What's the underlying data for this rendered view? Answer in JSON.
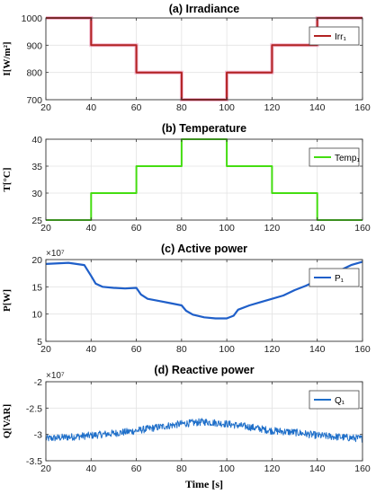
{
  "chart_data": [
    {
      "type": "line",
      "title": "(a) Irradiance",
      "ylabel": "I[W/m²]",
      "xlim": [
        20,
        160
      ],
      "ylim": [
        700,
        1000
      ],
      "xticks": [
        20,
        40,
        60,
        80,
        100,
        120,
        140,
        160
      ],
      "yticks": [
        700,
        800,
        900,
        1000
      ],
      "grid": true,
      "legend_position": "top-right",
      "series": [
        {
          "name": "Irr₁",
          "color": "#b22222",
          "step": true,
          "x": [
            20,
            40,
            40,
            60,
            60,
            80,
            80,
            100,
            100,
            120,
            120,
            140,
            140,
            160
          ],
          "y": [
            1000,
            1000,
            900,
            900,
            800,
            800,
            700,
            700,
            800,
            800,
            900,
            900,
            1000,
            1000
          ]
        }
      ]
    },
    {
      "type": "line",
      "title": "(b) Temperature",
      "ylabel": "T[°C]",
      "xlim": [
        20,
        160
      ],
      "ylim": [
        25,
        40
      ],
      "xticks": [
        20,
        40,
        60,
        80,
        100,
        120,
        140,
        160
      ],
      "yticks": [
        25,
        30,
        35,
        40
      ],
      "grid": true,
      "legend_position": "top-right",
      "series": [
        {
          "name": "Temp₁",
          "color": "#44dd11",
          "step": true,
          "x": [
            20,
            40,
            40,
            60,
            60,
            80,
            80,
            100,
            100,
            120,
            120,
            140,
            140,
            160
          ],
          "y": [
            25,
            25,
            30,
            30,
            35,
            35,
            40,
            40,
            35,
            35,
            30,
            30,
            25,
            25
          ]
        }
      ]
    },
    {
      "type": "line",
      "title": "(c)  Active power",
      "ylabel": "P[W]",
      "y_exponent_label": "×10⁷",
      "xlim": [
        20,
        160
      ],
      "ylim": [
        5,
        20
      ],
      "xticks": [
        20,
        40,
        60,
        80,
        100,
        120,
        140,
        160
      ],
      "yticks": [
        5,
        10,
        15,
        20
      ],
      "grid": true,
      "legend_position": "top-right",
      "series": [
        {
          "name": "P₁",
          "color": "#1f5fc9",
          "x": [
            20,
            30,
            37,
            40,
            42,
            45,
            50,
            55,
            60,
            62,
            65,
            70,
            75,
            80,
            82,
            85,
            90,
            95,
            100,
            103,
            105,
            110,
            115,
            120,
            125,
            130,
            135,
            140,
            145,
            150,
            155,
            160
          ],
          "y": [
            19.2,
            19.4,
            19.0,
            17.0,
            15.6,
            15.0,
            14.8,
            14.7,
            14.8,
            13.6,
            12.8,
            12.4,
            12.0,
            11.6,
            10.6,
            9.9,
            9.4,
            9.2,
            9.2,
            9.7,
            10.8,
            11.6,
            12.2,
            12.8,
            13.4,
            14.4,
            15.2,
            16.2,
            17.1,
            18.0,
            19.0,
            19.6
          ]
        }
      ]
    },
    {
      "type": "line",
      "title": "(d) Reactive power",
      "ylabel": "Q[VAR]",
      "xlabel": "Time [s]",
      "y_exponent_label": "×10⁷",
      "xlim": [
        20,
        160
      ],
      "ylim": [
        -3.5,
        -2
      ],
      "xticks": [
        20,
        40,
        60,
        80,
        100,
        120,
        140,
        160
      ],
      "yticks": [
        -3.5,
        -3,
        -2.5,
        -2
      ],
      "grid": true,
      "legend_position": "top-right",
      "noise_amplitude": 0.07,
      "series": [
        {
          "name": "Q₁",
          "color": "#1f6fc9",
          "x": [
            20,
            30,
            40,
            50,
            60,
            70,
            80,
            90,
            100,
            110,
            120,
            130,
            140,
            150,
            160
          ],
          "y": [
            -3.08,
            -3.05,
            -3.02,
            -2.98,
            -2.93,
            -2.86,
            -2.8,
            -2.76,
            -2.8,
            -2.86,
            -2.93,
            -2.96,
            -3.02,
            -3.05,
            -3.08
          ]
        }
      ]
    }
  ]
}
